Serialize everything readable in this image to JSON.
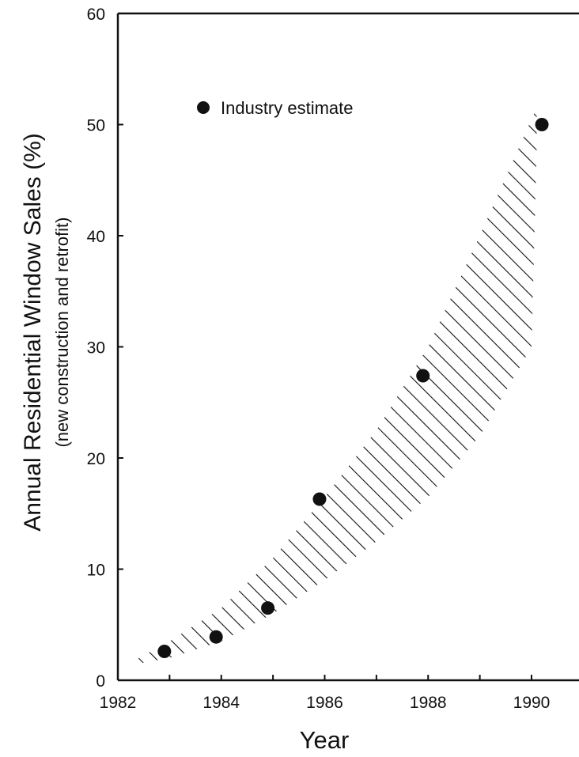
{
  "chart_data": {
    "type": "scatter",
    "title": "",
    "xlabel": "Year",
    "ylabel": "Annual Residential Window Sales (%)",
    "ylabel_sub": "(new construction and retrofit)",
    "xlim": [
      1982,
      1991
    ],
    "ylim": [
      0,
      60
    ],
    "xticks": [
      1982,
      1984,
      1986,
      1988,
      1990
    ],
    "yticks": [
      0,
      10,
      20,
      30,
      40,
      50,
      60
    ],
    "xtick_labels": [
      "1982",
      "1984",
      "1986",
      "1988",
      "1990"
    ],
    "ytick_labels": [
      "0",
      "10",
      "20",
      "30",
      "40",
      "50",
      "60"
    ],
    "grid": false,
    "legend_position": "top-left",
    "series": [
      {
        "name": "Industry estimate",
        "x": [
          1982.9,
          1983.9,
          1984.9,
          1985.9,
          1987.9,
          1990.2
        ],
        "y": [
          2.6,
          3.9,
          6.5,
          16.3,
          27.4,
          50.0
        ]
      }
    ],
    "band": {
      "description": "hatched projection range",
      "x": [
        1982.4,
        1983,
        1984,
        1985,
        1986,
        1987,
        1988,
        1989,
        1990,
        1990.1
      ],
      "upper": [
        2.0,
        3.5,
        6.5,
        11.0,
        16.5,
        22.5,
        30.0,
        40.0,
        50.5,
        51.5
      ],
      "lower": [
        1.5,
        2.0,
        3.5,
        6.0,
        9.0,
        12.5,
        16.5,
        22.0,
        30.0,
        48.0
      ]
    },
    "colors": {
      "points": "#111111",
      "hatch": "#111111",
      "axes": "#111111"
    }
  }
}
